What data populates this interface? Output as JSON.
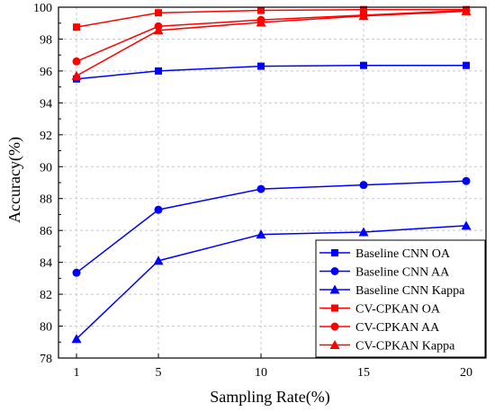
{
  "chart_data": {
    "type": "line",
    "title": "",
    "xlabel": "Sampling Rate(%)",
    "ylabel": "Accuracy(%)",
    "x": [
      1,
      5,
      10,
      15,
      20
    ],
    "x_tick_labels": [
      "1",
      "5",
      "10",
      "15",
      "20"
    ],
    "ylim": [
      78,
      100
    ],
    "y_ticks": [
      78,
      80,
      82,
      84,
      86,
      88,
      90,
      92,
      94,
      96,
      98,
      100
    ],
    "grid": true,
    "legend_position": "bottom-right",
    "series": [
      {
        "name": "Baseline CNN OA",
        "marker": "square",
        "color": "#0000ff",
        "values": [
          95.5,
          96.0,
          96.3,
          96.35,
          96.35
        ]
      },
      {
        "name": "Baseline CNN AA",
        "marker": "circle",
        "color": "#0000ff",
        "values": [
          83.35,
          87.3,
          88.6,
          88.85,
          89.1
        ]
      },
      {
        "name": "Baseline CNN Kappa",
        "marker": "triangle",
        "color": "#0000ff",
        "values": [
          79.2,
          84.1,
          85.75,
          85.9,
          86.3
        ]
      },
      {
        "name": "CV-CPKAN OA",
        "marker": "square",
        "color": "#ff0000",
        "values": [
          98.75,
          99.65,
          99.8,
          99.85,
          99.85
        ]
      },
      {
        "name": "CV-CPKAN AA",
        "marker": "circle",
        "color": "#ff0000",
        "values": [
          96.6,
          98.8,
          99.2,
          99.5,
          99.8
        ]
      },
      {
        "name": "CV-CPKAN Kappa",
        "marker": "triangle",
        "color": "#ff0000",
        "values": [
          95.7,
          98.55,
          99.05,
          99.45,
          99.75
        ]
      }
    ]
  }
}
